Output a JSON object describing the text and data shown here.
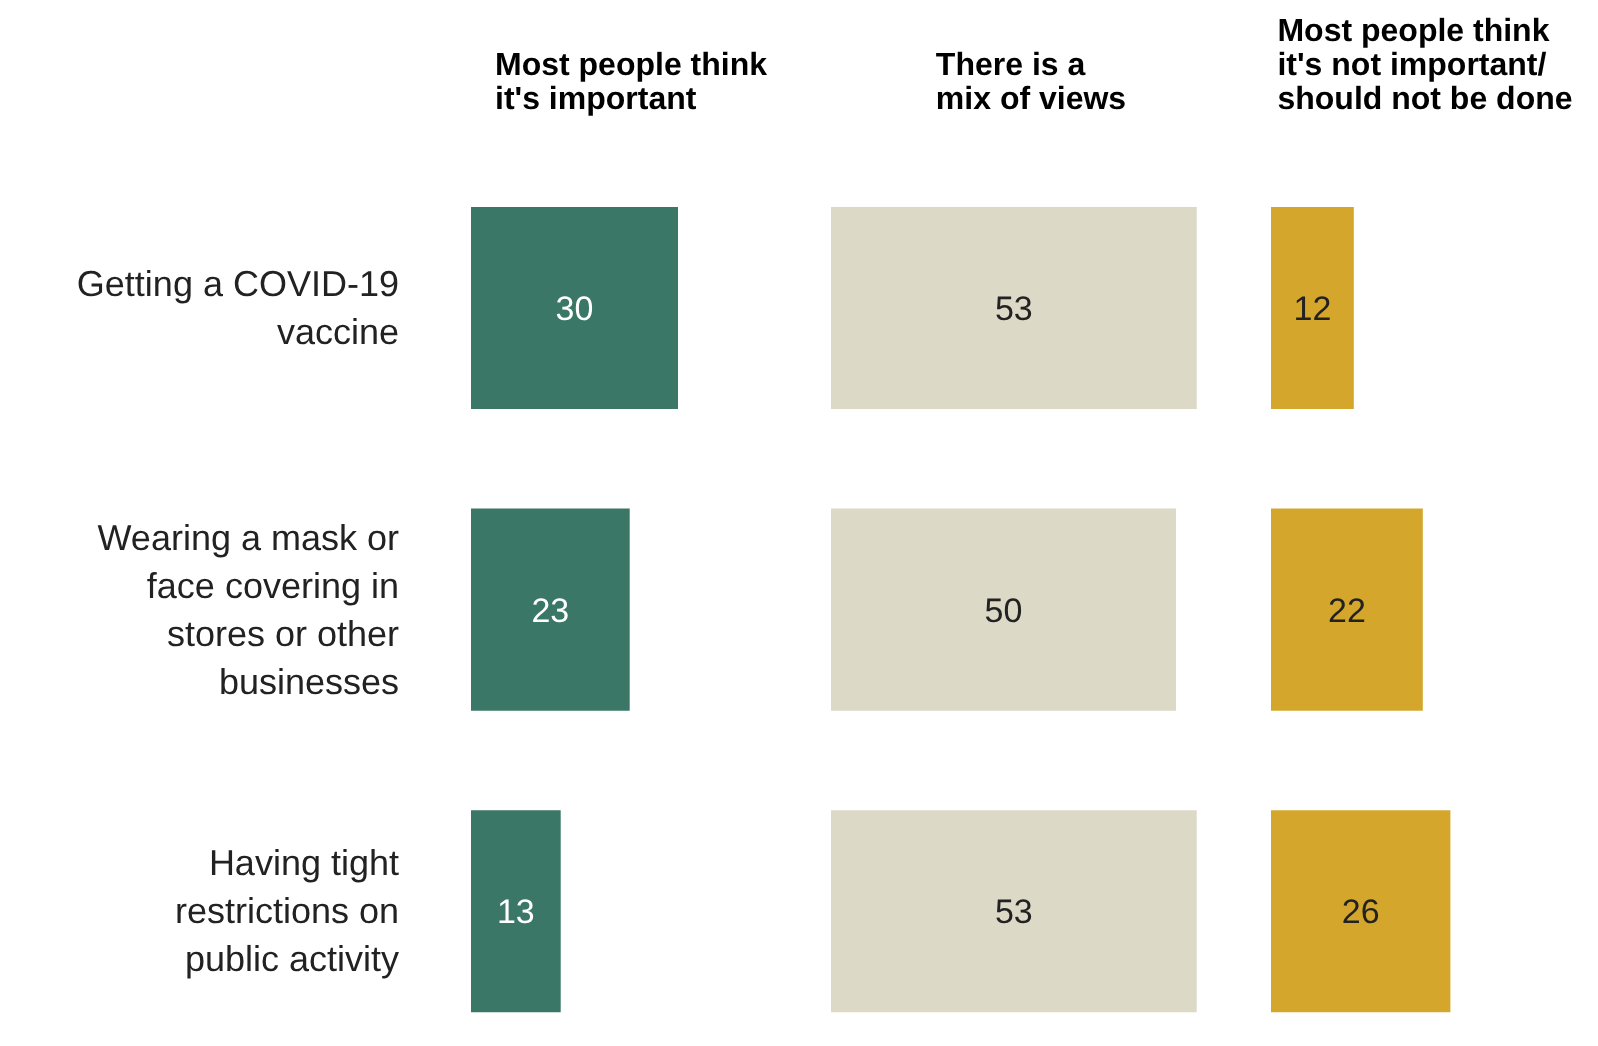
{
  "chart_data": [
    {
      "type": "bar",
      "orientation": "horizontal",
      "title": "Most people think\nit's important",
      "categories": [
        "Getting a COVID-19 vaccine",
        "Wearing a mask or face covering in stores or other businesses",
        "Having tight restrictions on public activity"
      ],
      "values": [
        30,
        23,
        13
      ],
      "color": "#3a7766",
      "data_labels": true,
      "tick_labels": "y"
    },
    {
      "type": "bar",
      "orientation": "horizontal",
      "title": "There is a\nmix of views",
      "values": [
        53,
        50,
        53
      ],
      "color": "#dcd9c7",
      "data_labels": true,
      "tick_labels": false
    },
    {
      "type": "bar",
      "orientation": "horizontal",
      "title": "Most people think\nit's not important/\nshould not be done",
      "values": [
        12,
        22,
        26
      ],
      "color": "#d4a72c",
      "data_labels": true,
      "tick_labels": false
    }
  ]
}
